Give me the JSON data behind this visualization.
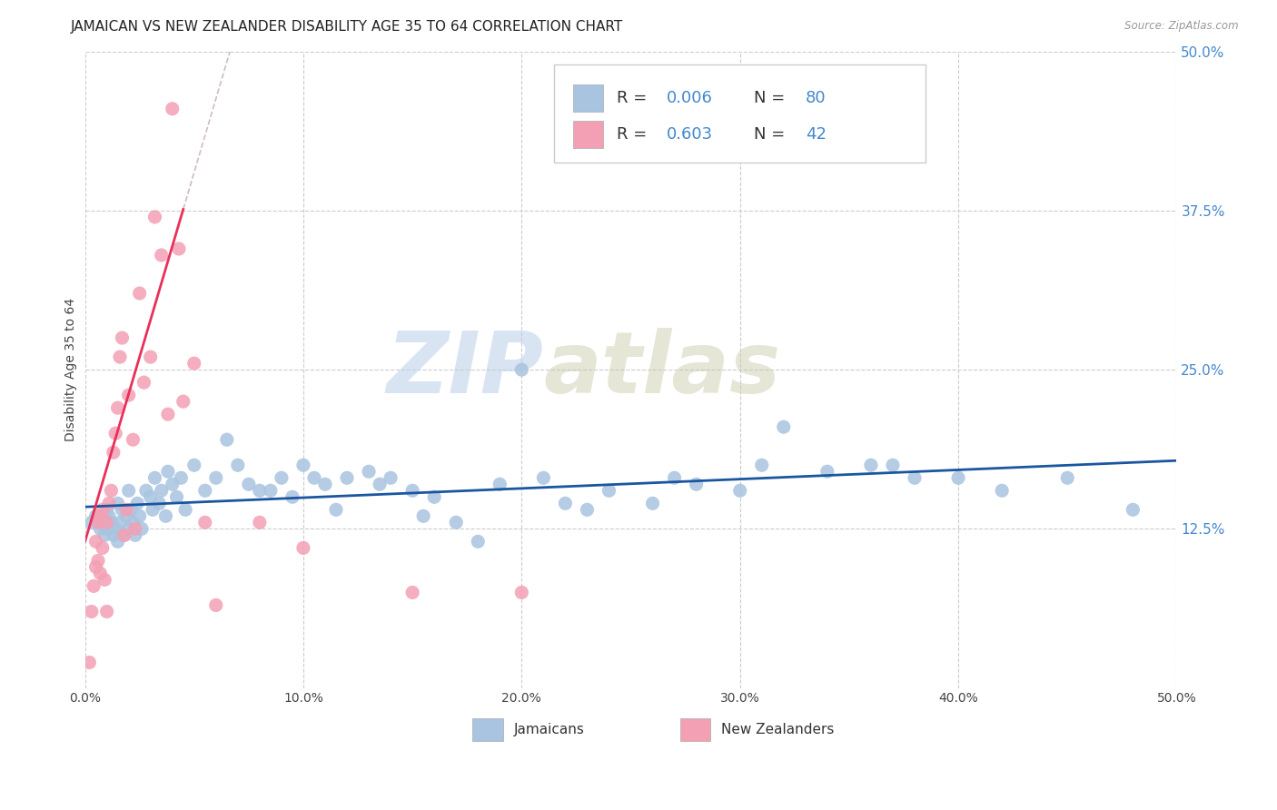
{
  "title": "JAMAICAN VS NEW ZEALANDER DISABILITY AGE 35 TO 64 CORRELATION CHART",
  "source": "Source: ZipAtlas.com",
  "ylabel": "Disability Age 35 to 64",
  "xlim": [
    0.0,
    0.5
  ],
  "ylim": [
    0.0,
    0.5
  ],
  "xtick_labels": [
    "0.0%",
    "10.0%",
    "20.0%",
    "30.0%",
    "40.0%",
    "50.0%"
  ],
  "xtick_positions": [
    0.0,
    0.1,
    0.2,
    0.3,
    0.4,
    0.5
  ],
  "ytick_labels": [
    "12.5%",
    "25.0%",
    "37.5%",
    "50.0%"
  ],
  "ytick_positions": [
    0.125,
    0.25,
    0.375,
    0.5
  ],
  "background_color": "#ffffff",
  "grid_color": "#cccccc",
  "jamaicans_color": "#a8c4e0",
  "new_zealanders_color": "#f4a0b4",
  "jamaicans_line_color": "#1a56a0",
  "new_zealanders_line_color": "#e8305a",
  "R_jamaicans": 0.006,
  "N_jamaicans": 80,
  "R_new_zealanders": 0.603,
  "N_new_zealanders": 42,
  "watermark_zip": "ZIP",
  "watermark_atlas": "atlas",
  "title_fontsize": 11,
  "axis_label_fontsize": 10,
  "tick_fontsize": 10,
  "jamaicans_x": [
    0.003,
    0.005,
    0.007,
    0.008,
    0.009,
    0.01,
    0.01,
    0.011,
    0.012,
    0.013,
    0.014,
    0.015,
    0.015,
    0.016,
    0.017,
    0.018,
    0.019,
    0.02,
    0.02,
    0.021,
    0.022,
    0.023,
    0.024,
    0.025,
    0.026,
    0.028,
    0.03,
    0.031,
    0.032,
    0.034,
    0.035,
    0.037,
    0.038,
    0.04,
    0.042,
    0.044,
    0.046,
    0.05,
    0.055,
    0.06,
    0.065,
    0.07,
    0.075,
    0.08,
    0.085,
    0.09,
    0.095,
    0.1,
    0.105,
    0.11,
    0.115,
    0.12,
    0.13,
    0.135,
    0.14,
    0.15,
    0.155,
    0.16,
    0.17,
    0.18,
    0.19,
    0.2,
    0.21,
    0.22,
    0.23,
    0.24,
    0.26,
    0.27,
    0.28,
    0.3,
    0.31,
    0.32,
    0.34,
    0.36,
    0.37,
    0.38,
    0.4,
    0.42,
    0.45,
    0.48
  ],
  "jamaicans_y": [
    0.13,
    0.135,
    0.125,
    0.13,
    0.12,
    0.14,
    0.125,
    0.135,
    0.13,
    0.12,
    0.125,
    0.145,
    0.115,
    0.13,
    0.14,
    0.12,
    0.135,
    0.155,
    0.125,
    0.14,
    0.13,
    0.12,
    0.145,
    0.135,
    0.125,
    0.155,
    0.15,
    0.14,
    0.165,
    0.145,
    0.155,
    0.135,
    0.17,
    0.16,
    0.15,
    0.165,
    0.14,
    0.175,
    0.155,
    0.165,
    0.195,
    0.175,
    0.16,
    0.155,
    0.155,
    0.165,
    0.15,
    0.175,
    0.165,
    0.16,
    0.14,
    0.165,
    0.17,
    0.16,
    0.165,
    0.155,
    0.135,
    0.15,
    0.13,
    0.115,
    0.16,
    0.25,
    0.165,
    0.145,
    0.14,
    0.155,
    0.145,
    0.165,
    0.16,
    0.155,
    0.175,
    0.205,
    0.17,
    0.175,
    0.175,
    0.165,
    0.165,
    0.155,
    0.165,
    0.14
  ],
  "new_zealanders_x": [
    0.002,
    0.003,
    0.004,
    0.005,
    0.005,
    0.006,
    0.006,
    0.007,
    0.007,
    0.008,
    0.008,
    0.009,
    0.01,
    0.01,
    0.011,
    0.012,
    0.013,
    0.014,
    0.015,
    0.016,
    0.017,
    0.018,
    0.019,
    0.02,
    0.022,
    0.023,
    0.025,
    0.027,
    0.03,
    0.032,
    0.035,
    0.038,
    0.04,
    0.043,
    0.045,
    0.05,
    0.055,
    0.06,
    0.08,
    0.1,
    0.15,
    0.2
  ],
  "new_zealanders_y": [
    0.02,
    0.06,
    0.08,
    0.095,
    0.115,
    0.1,
    0.13,
    0.09,
    0.135,
    0.11,
    0.14,
    0.085,
    0.13,
    0.06,
    0.145,
    0.155,
    0.185,
    0.2,
    0.22,
    0.26,
    0.275,
    0.12,
    0.14,
    0.23,
    0.195,
    0.125,
    0.31,
    0.24,
    0.26,
    0.37,
    0.34,
    0.215,
    0.455,
    0.345,
    0.225,
    0.255,
    0.13,
    0.065,
    0.13,
    0.11,
    0.075,
    0.075
  ]
}
